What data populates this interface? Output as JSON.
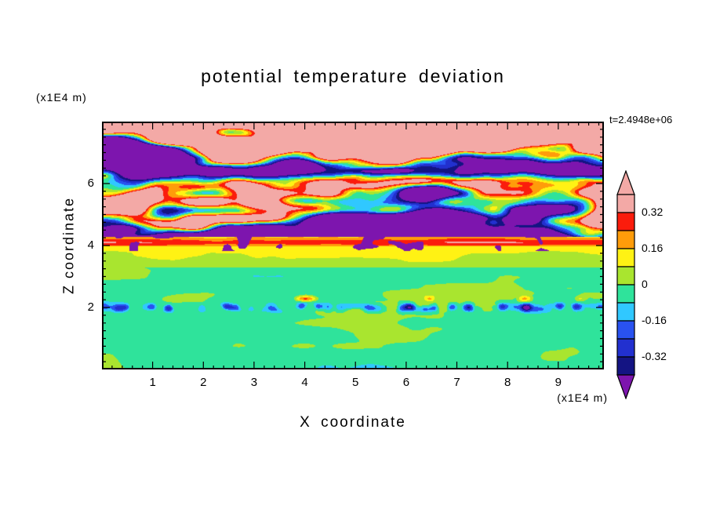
{
  "title": "potential temperature deviation",
  "time_label": "t=2.4948e+06",
  "axes": {
    "x": {
      "label": "X coordinate",
      "unit": "(x1E4 m)",
      "min": 0,
      "max": 9.9,
      "major_ticks": [
        1,
        2,
        3,
        4,
        5,
        6,
        7,
        8,
        9
      ],
      "minor_step": 0.2
    },
    "z": {
      "label": "Z coordinate",
      "unit": "(x1E4 m)",
      "min": 0,
      "max": 8,
      "major_ticks": [
        2,
        4,
        6
      ],
      "minor_step": 0.25
    }
  },
  "colorbar": {
    "tick_labels": [
      "0.32",
      "0.16",
      "0",
      "-0.16",
      "-0.32"
    ],
    "segment_colors_top_to_bottom": [
      "#F3A9A6",
      "#FB1C0C",
      "#FF9C0A",
      "#FFF214",
      "#A9E52F",
      "#2FE39B",
      "#30C8FF",
      "#2952F0",
      "#2230CF",
      "#141483"
    ],
    "over_arrow_color": "#F3A9A6",
    "under_arrow_color": "#7D15AE"
  },
  "chart_data": {
    "type": "heatmap",
    "title": "potential temperature deviation",
    "xlabel": "X coordinate (x1E4 m)",
    "ylabel": "Z coordinate (x1E4 m)",
    "time_annotation": "t=2.4948e+06",
    "x_range": [
      0,
      9.9
    ],
    "y_range": [
      0,
      8
    ],
    "x_ticks": [
      1,
      2,
      3,
      4,
      5,
      6,
      7,
      8,
      9
    ],
    "y_ticks": [
      2,
      4,
      6
    ],
    "grid": false,
    "legend_position": "right-colorbar-with-arrow-tips",
    "contour_levels": [
      -0.4,
      -0.32,
      -0.24,
      -0.16,
      -0.08,
      0,
      0.08,
      0.16,
      0.24,
      0.32,
      0.4
    ],
    "colorbar_tick_labels": [
      "0.32",
      "0.16",
      "0",
      "-0.16",
      "-0.32"
    ],
    "regions": [
      {
        "z_range": [
          4.3,
          8.0
        ],
        "value_range": [
          -1.2,
          1.2
        ],
        "description": "large-amplitude alternating wavy layers saturating the scale: pink (>0.32) and purple (<-0.4) horizontal patches with thin multicolor fringes"
      },
      {
        "z_range": [
          4.0,
          4.3
        ],
        "value_range": [
          0.16,
          0.4
        ],
        "description": "strong positive horizontal stripe: red core with orange/yellow edges spanning full width"
      },
      {
        "z_range": [
          3.3,
          4.0
        ],
        "value_range": [
          0.0,
          0.16
        ],
        "description": "weak positive yellow-green (chartreuse) band"
      },
      {
        "z_range": [
          0.0,
          3.3
        ],
        "value_range": [
          -0.08,
          0.08
        ],
        "description": "near-zero spring-green turbulent layer with chartreuse swirls, broken cyan/blue/navy streaks near z=2 and occasional red-orange spots near z=2.3; dark specks near z=4"
      }
    ],
    "field_params": {
      "seed": 11,
      "upper": {
        "z_min": 4.27,
        "wave_freq": 2.6,
        "wave_amp": 0.75,
        "phase_warp": 3.2,
        "noise_amp": 1.15,
        "noise_fx": 0.38,
        "noise_fz": 0.85,
        "detail_amp": 0.35,
        "detail_fx": 1.1,
        "detail_fz": 1.9
      },
      "band": {
        "z_min": 3.98,
        "center": 4.1,
        "peak": 0.31,
        "falloff": 0.9,
        "noise_amp": 0.05,
        "noise_fx": 1.3,
        "noise_fz": 2.2
      },
      "shear": {
        "z_min": 3.3,
        "base": 0.03,
        "grad": 0.1,
        "noise_amp": 0.05,
        "noise_fx": 0.8,
        "noise_fz": 1.6
      },
      "lower": {
        "base": -0.028,
        "noise_amp": 0.085,
        "noise_fx": 0.55,
        "noise_fz": 1.3
      },
      "streaks": {
        "z_center": 2.0,
        "width": 0.13,
        "amp": -0.5,
        "noise_fx": 3.0,
        "threshold": 0.42,
        "gain": 1.6
      },
      "spots": {
        "z_center": 2.28,
        "width": 0.11,
        "amp": 0.4,
        "noise_fx": 1.6,
        "threshold": 0.62,
        "gain": 1.8
      },
      "specks": {
        "z_min": 3.82,
        "z_max": 4.3,
        "noise_fx": 3.2,
        "noise_fz": 3.0,
        "threshold": 0.75,
        "value": -0.55
      }
    }
  }
}
